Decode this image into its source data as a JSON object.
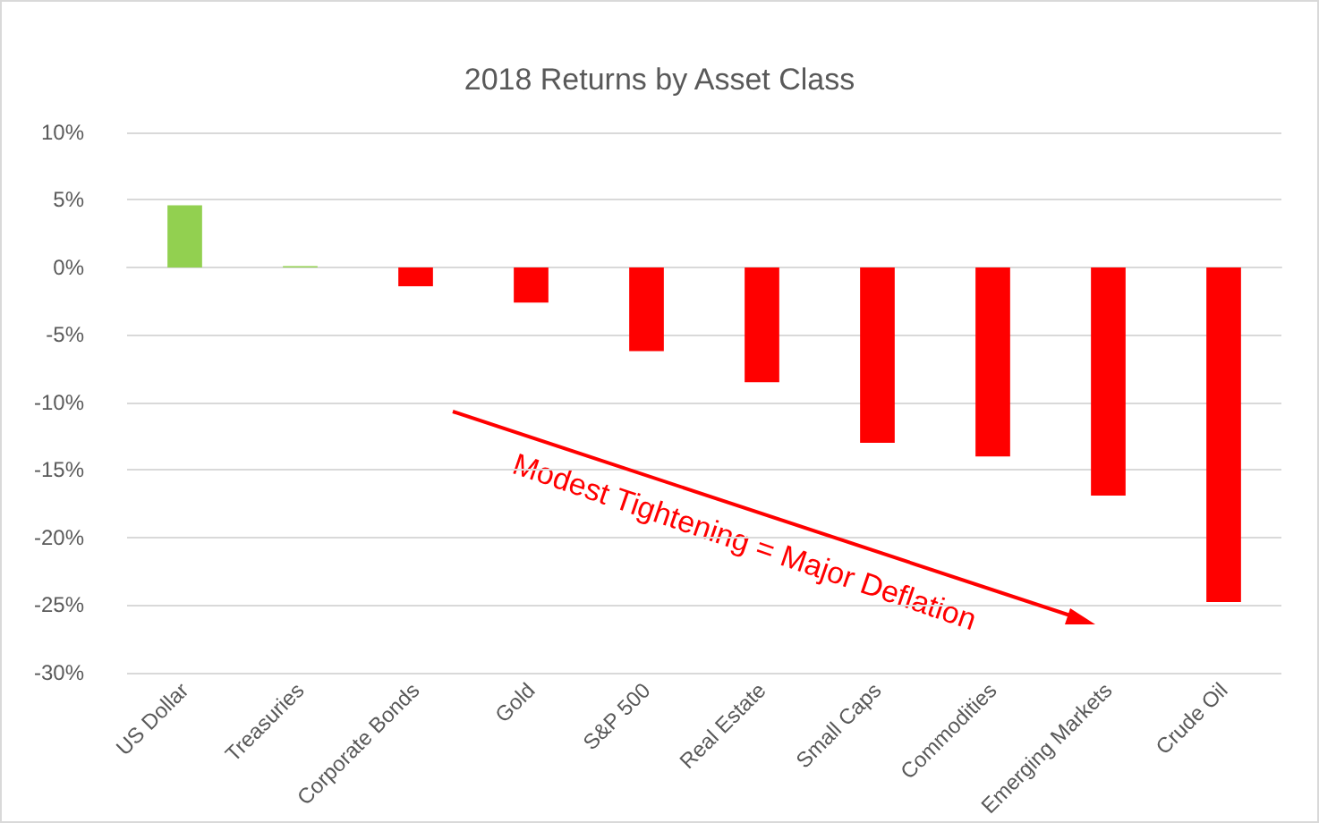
{
  "chart_data": {
    "type": "bar",
    "title": "2018 Returns by Asset Class",
    "categories": [
      "US Dollar",
      "Treasuries",
      "Corporate Bonds",
      "Gold",
      "S&P 500",
      "Real Estate",
      "Small Caps",
      "Commodities",
      "Emerging Markets",
      "Crude Oil"
    ],
    "values": [
      4.6,
      0.1,
      -1.4,
      -2.6,
      -6.2,
      -8.5,
      -13,
      -14,
      -16.9,
      -24.8
    ],
    "colors": [
      "#92d050",
      "#92d050",
      "#ff0000",
      "#ff0000",
      "#ff0000",
      "#ff0000",
      "#ff0000",
      "#ff0000",
      "#ff0000",
      "#ff0000"
    ],
    "ylim": [
      -30,
      10
    ],
    "yticks": [
      {
        "value": -30,
        "label": "-30%"
      },
      {
        "value": -25,
        "label": "-25%"
      },
      {
        "value": -20,
        "label": "-20%"
      },
      {
        "value": -15,
        "label": "-15%"
      },
      {
        "value": -10,
        "label": "-10%"
      },
      {
        "value": -5,
        "label": "-5%"
      },
      {
        "value": 0,
        "label": "0%"
      },
      {
        "value": 5,
        "label": "5%"
      },
      {
        "value": 10,
        "label": "10%"
      }
    ],
    "grid": "y",
    "annotations": [
      "Modest Tightening = Major Deflation"
    ]
  }
}
